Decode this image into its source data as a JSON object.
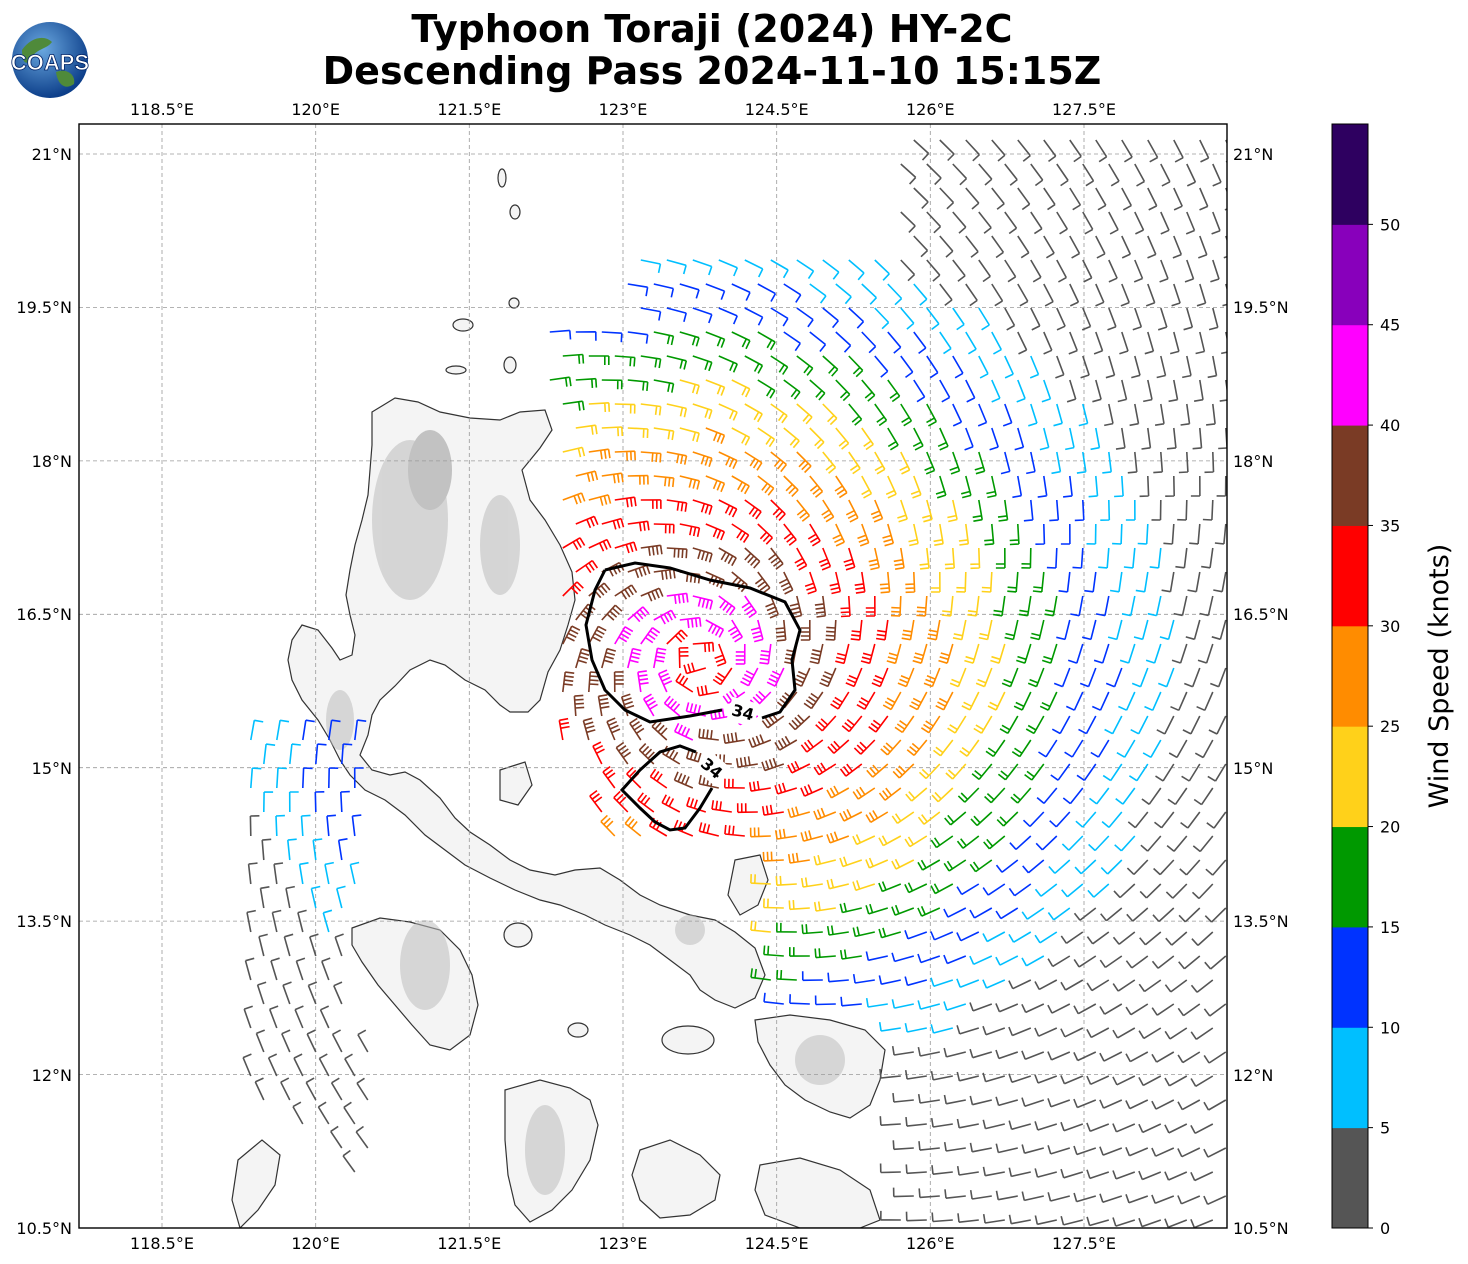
{
  "title_line1": "Typhoon Toraji (2024) HY-2C",
  "title_line2": "Descending Pass 2024-11-10 15:15Z",
  "logo_text": "COAPS",
  "lon_ticks": [
    "118.5°E",
    "120°E",
    "121.5°E",
    "123°E",
    "124.5°E",
    "126°E",
    "127.5°E"
  ],
  "lat_ticks": [
    "21°N",
    "19.5°N",
    "18°N",
    "16.5°N",
    "15°N",
    "13.5°N",
    "12°N",
    "10.5°N"
  ],
  "colorbar": {
    "label": "Wind Speed (knots)",
    "ticks": [
      "0",
      "5",
      "10",
      "15",
      "20",
      "25",
      "30",
      "35",
      "40",
      "45",
      "50"
    ],
    "colors": [
      "#555555",
      "#00bfff",
      "#0033ff",
      "#009900",
      "#ffd11a",
      "#ff8c00",
      "#ff0000",
      "#7a3b25",
      "#ff00ff",
      "#8800bb",
      "#2e0060"
    ]
  },
  "contour_label": "34",
  "contour_labels": [
    "34",
    "34"
  ],
  "colors": {
    "coast": "#333333",
    "land_shade": "#d4d4d4",
    "grid": "#9a9a9a",
    "contour": "#000000"
  }
}
